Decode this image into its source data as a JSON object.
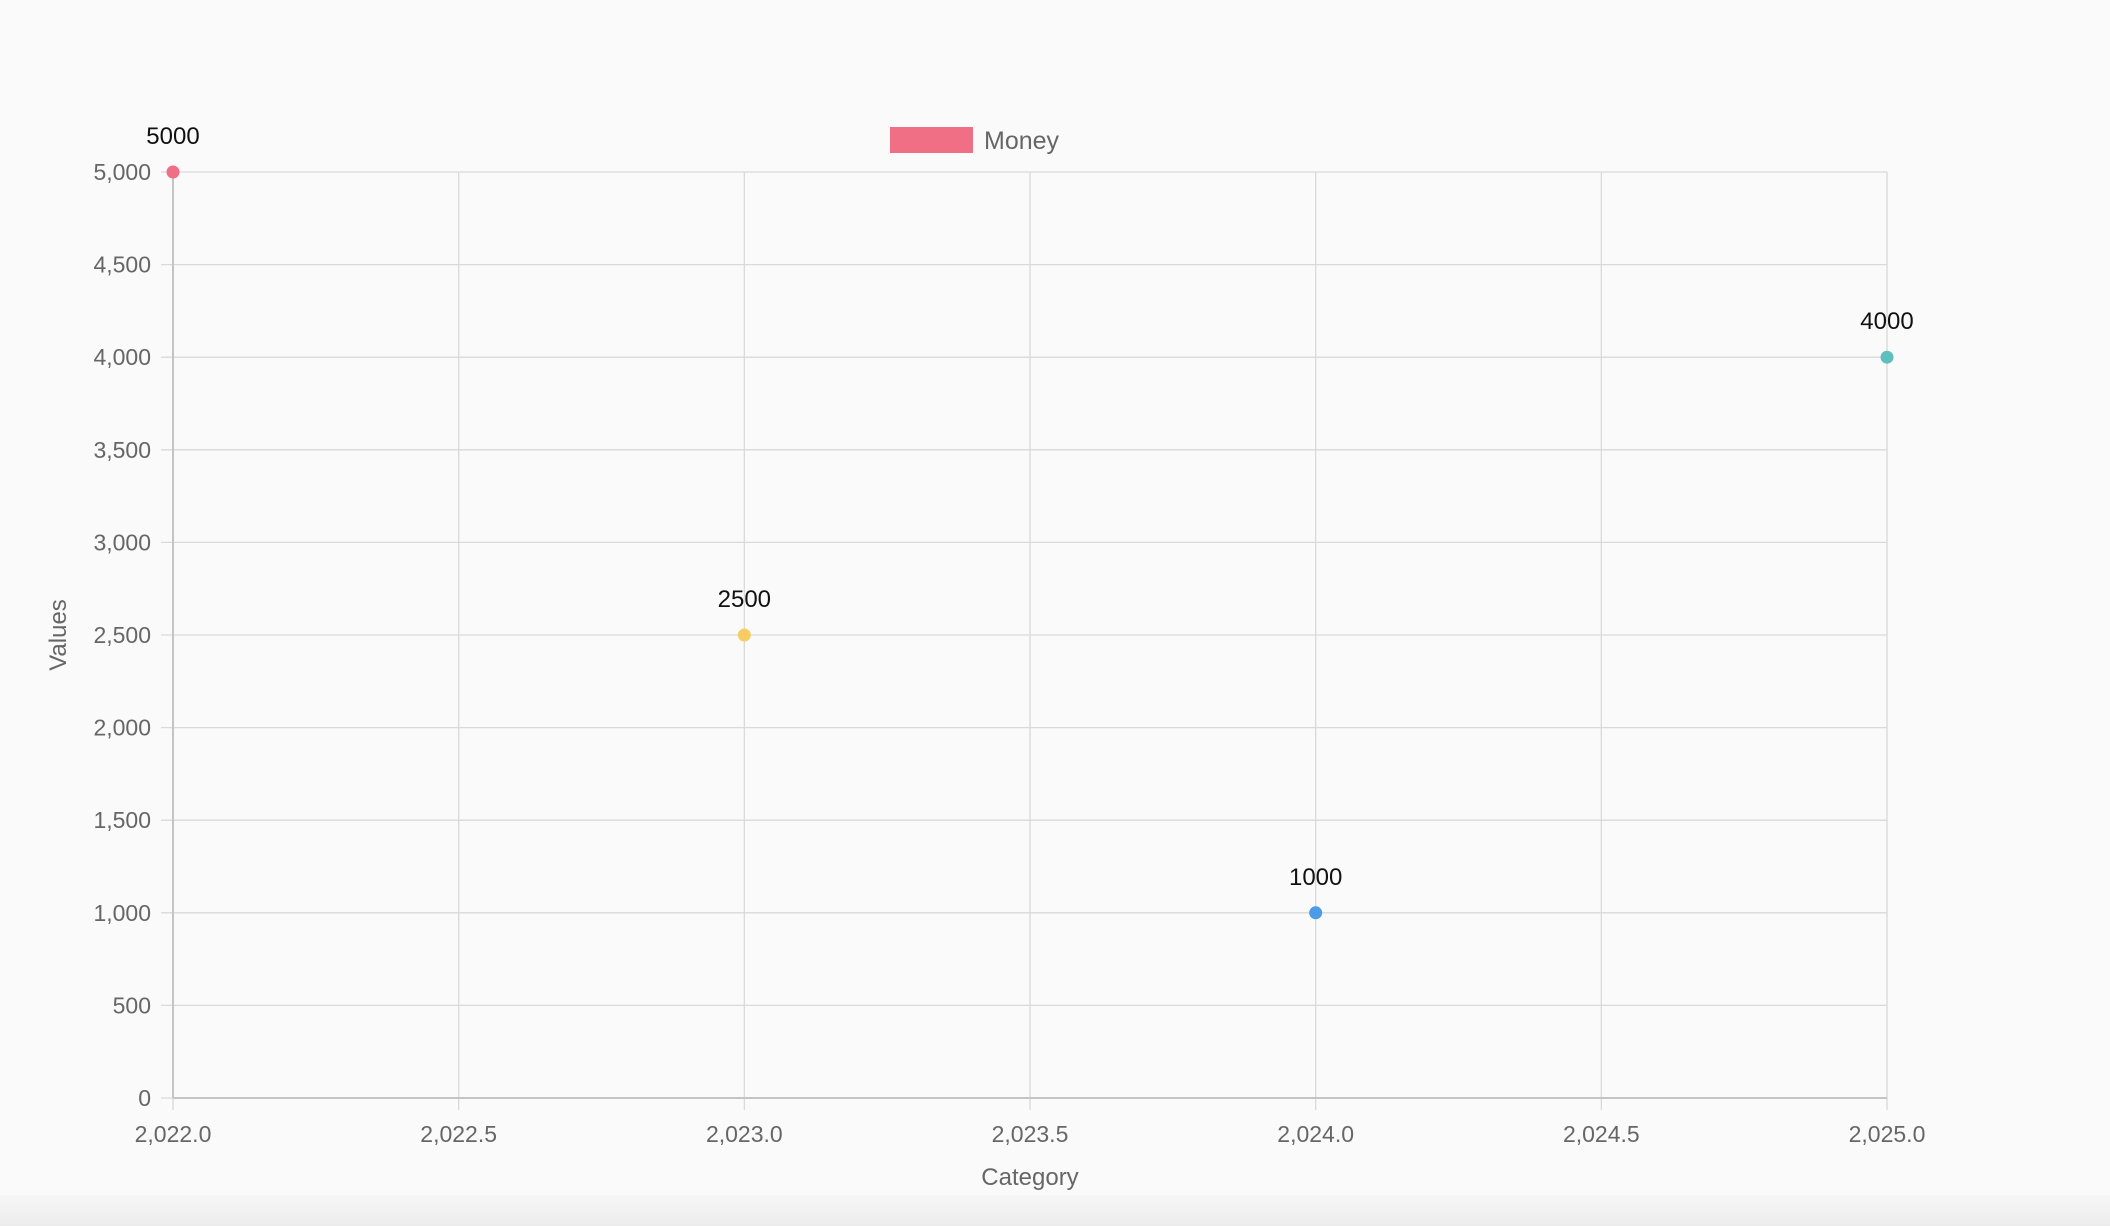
{
  "chart_data": {
    "type": "scatter",
    "title": "",
    "xlabel": "Category",
    "ylabel": "Values",
    "xlim": [
      2022,
      2025
    ],
    "ylim": [
      0,
      5000
    ],
    "x_ticks": [
      "2,022.0",
      "2,022.5",
      "2,023.0",
      "2,023.5",
      "2,024.0",
      "2,024.5",
      "2,025.0"
    ],
    "y_ticks": [
      "0",
      "500",
      "1,000",
      "1,500",
      "2,000",
      "2,500",
      "3,000",
      "3,500",
      "4,000",
      "4,500",
      "5,000"
    ],
    "grid": true,
    "legend": {
      "position": "top",
      "entries": [
        {
          "label": "Money",
          "color": "#f06f85"
        }
      ]
    },
    "series": [
      {
        "name": "Money",
        "points": [
          {
            "x": 2022,
            "y": 5000,
            "label": "5000",
            "color": "#f06f85"
          },
          {
            "x": 2023,
            "y": 2500,
            "label": "2500",
            "color": "#f6cc63"
          },
          {
            "x": 2024,
            "y": 1000,
            "label": "1000",
            "color": "#4c9be6"
          },
          {
            "x": 2025,
            "y": 4000,
            "label": "4000",
            "color": "#5ebfbf"
          }
        ]
      }
    ]
  }
}
